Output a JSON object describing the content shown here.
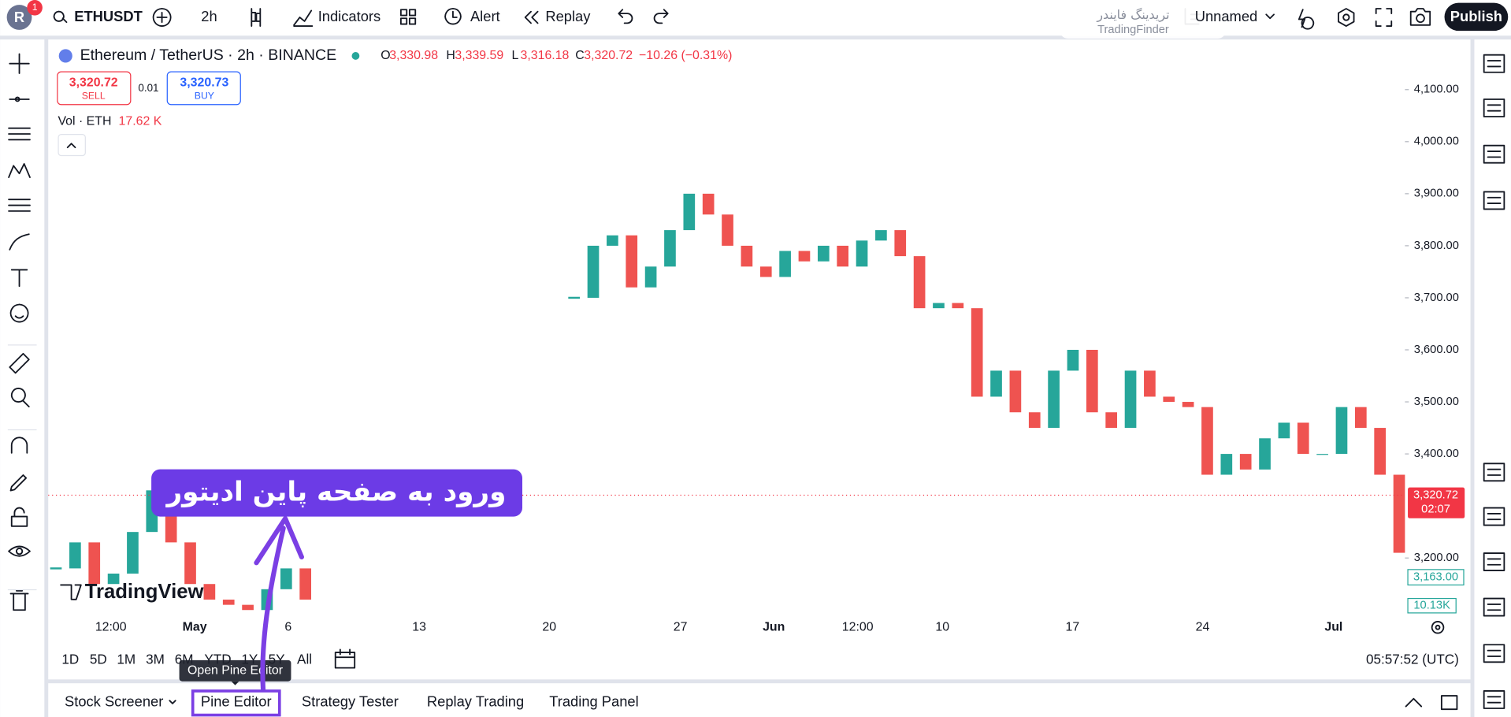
{
  "toolbar": {
    "avatar": "R",
    "badge": "1",
    "symbol": "ETHUSDT",
    "interval": "2h",
    "indicators": "Indicators",
    "alert": "Alert",
    "replay": "Replay",
    "layout_name": "Unnamed",
    "publish": "Publish"
  },
  "watermark": {
    "persian": "تریدینگ فایندر",
    "latin": "TradingFinder"
  },
  "legend": {
    "symbol": "Ethereum / TetherUS · 2h · BINANCE",
    "o_label": "O",
    "open": "3,330.98",
    "h_label": "H",
    "high": "3,339.59",
    "l_label": "L",
    "low": "3,316.18",
    "c_label": "C",
    "close": "3,320.72",
    "change": "−10.26 (−0.31%)"
  },
  "trade": {
    "sell_price": "3,320.72",
    "sell": "SELL",
    "spread": "0.01",
    "buy_price": "3,320.73",
    "buy": "BUY"
  },
  "volume": {
    "label": "Vol · ETH",
    "value": "17.62 K"
  },
  "chart_data": {
    "type": "candlestick",
    "closes": [
      3180,
      3230,
      3150,
      3170,
      3250,
      3330,
      3230,
      3150,
      3120,
      3110,
      3100,
      3140,
      3180,
      3120,
      null,
      null,
      null,
      null,
      null,
      null,
      null,
      null,
      null,
      null,
      null,
      null,
      null,
      3700,
      3800,
      3820,
      3720,
      3760,
      3830,
      3900,
      3860,
      3800,
      3760,
      3740,
      3790,
      3770,
      3800,
      3760,
      3810,
      3830,
      3780,
      3680,
      3690,
      3680,
      3510,
      3560,
      3480,
      3450,
      3560,
      3600,
      3480,
      3450,
      3560,
      3510,
      3500,
      3490,
      3360,
      3400,
      3370,
      3430,
      3460,
      3400,
      3400,
      3490,
      3450,
      3360,
      3210
    ],
    "ylim": [
      3092.6,
      4188.9
    ],
    "yticks": [
      {
        "value": 3200,
        "label": "3,200.00"
      },
      {
        "value": 3400,
        "label": "3,400.00"
      },
      {
        "value": 3500,
        "label": "3,500.00"
      },
      {
        "value": 3600,
        "label": "3,600.00"
      },
      {
        "value": 3700,
        "label": "3,700.00"
      },
      {
        "value": 3800,
        "label": "3,800.00"
      },
      {
        "value": 3900,
        "label": "3,900.00"
      },
      {
        "value": 4000,
        "label": "4,000.00"
      },
      {
        "value": 4100,
        "label": "4,100.00"
      }
    ],
    "last_price": {
      "value": 3320.72,
      "label": "3,320.72"
    },
    "countdown": "02:07",
    "ma_price": {
      "value": 3163,
      "label": "3,163.00"
    },
    "volume_tag": "10.13K",
    "time_labels": [
      "12:00",
      "May",
      "6",
      "13",
      "20",
      "27",
      "Jun",
      "12:00",
      "10",
      "17",
      "24",
      "Jul"
    ]
  },
  "logo": "TradingView",
  "timeframes": [
    "1D",
    "5D",
    "1M",
    "3M",
    "6M",
    "YTD",
    "1Y",
    "5Y",
    "All"
  ],
  "tooltip": "Open Pine Editor",
  "clock": "05:57:52 (UTC)",
  "bottom_tabs": [
    "Stock Screener",
    "Pine Editor",
    "Strategy Tester",
    "Replay Trading",
    "Trading Panel"
  ],
  "annotation": "ورود به صفحه پاین ادیتور"
}
